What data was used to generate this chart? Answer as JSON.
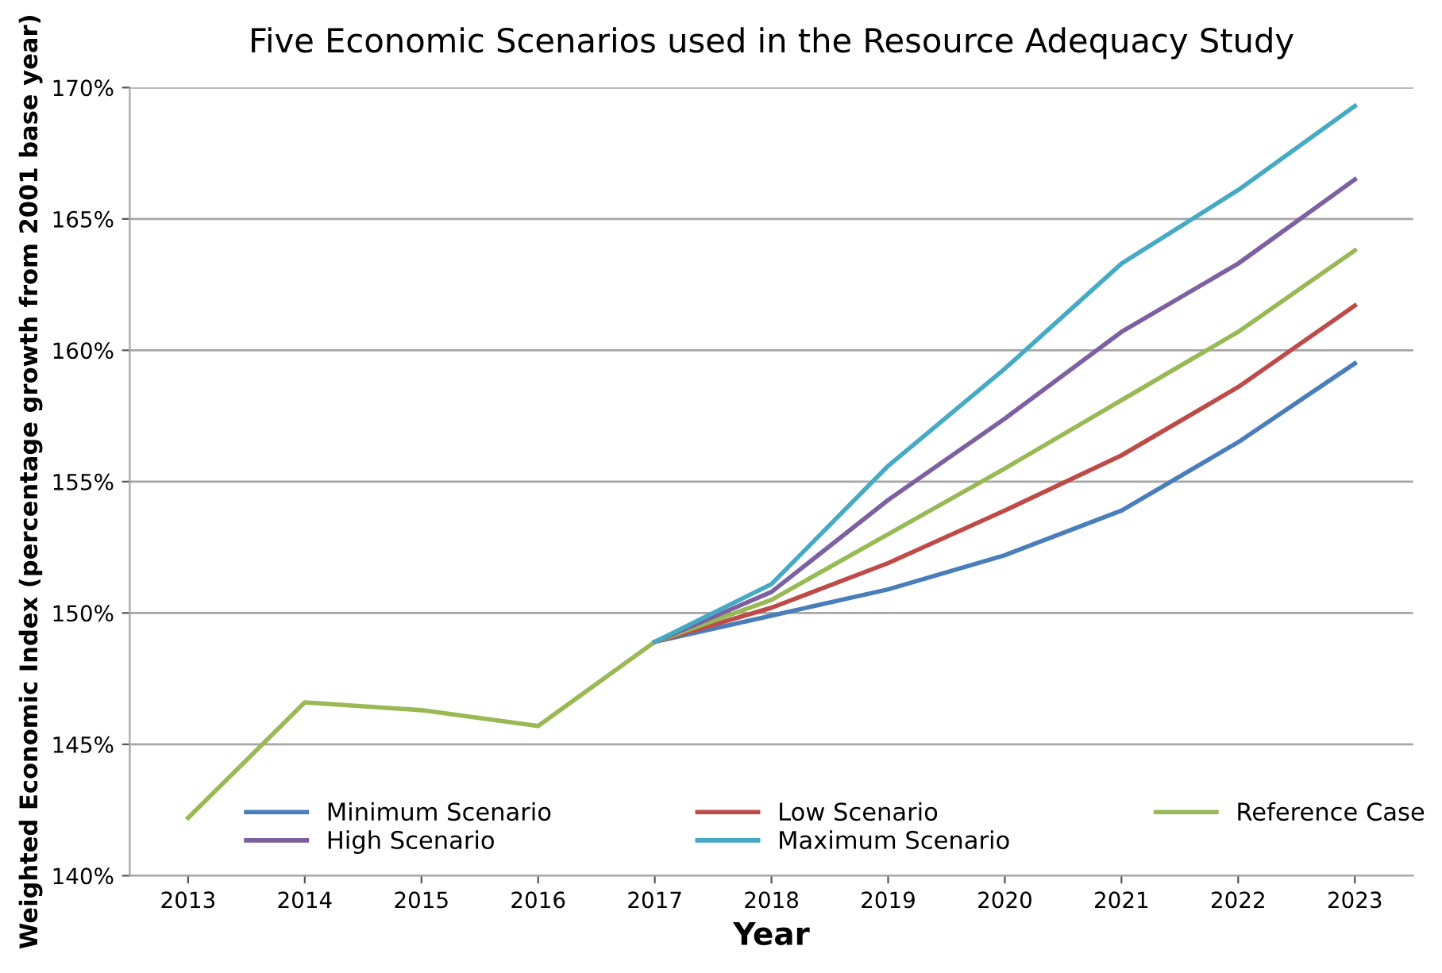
{
  "chart_data": {
    "type": "line",
    "title": "Five Economic Scenarios used in the Resource Adequacy Study",
    "xlabel": "Year",
    "ylabel": "Weighted Economic Index (percentage growth from 2001 base year)",
    "categories": [
      "2013",
      "2014",
      "2015",
      "2016",
      "2017",
      "2018",
      "2019",
      "2020",
      "2021",
      "2022",
      "2023"
    ],
    "series": [
      {
        "name": "Minimum Scenario",
        "color": "#4a7ebb",
        "values": [
          null,
          null,
          null,
          null,
          148.9,
          149.9,
          150.9,
          152.2,
          153.9,
          156.5,
          159.5
        ]
      },
      {
        "name": "Low Scenario",
        "color": "#be4b48",
        "values": [
          null,
          null,
          null,
          null,
          148.9,
          150.2,
          151.9,
          153.9,
          156.0,
          158.6,
          161.7
        ]
      },
      {
        "name": "Reference Case",
        "color": "#98b954",
        "values": [
          142.2,
          146.6,
          146.3,
          145.7,
          148.9,
          150.5,
          153.0,
          155.5,
          158.1,
          160.7,
          163.8
        ]
      },
      {
        "name": "High Scenario",
        "color": "#7d60a0",
        "values": [
          null,
          null,
          null,
          null,
          148.9,
          150.8,
          154.3,
          157.4,
          160.7,
          163.3,
          166.5
        ]
      },
      {
        "name": "Maximum Scenario",
        "color": "#46aac5",
        "values": [
          null,
          null,
          null,
          null,
          148.9,
          151.1,
          155.6,
          159.3,
          163.3,
          166.1,
          169.3
        ]
      }
    ],
    "ylim": [
      140,
      170
    ],
    "yticks": [
      {
        "value": 140,
        "label": "140%"
      },
      {
        "value": 145,
        "label": "145%"
      },
      {
        "value": 150,
        "label": "150%"
      },
      {
        "value": 155,
        "label": "155%"
      },
      {
        "value": 160,
        "label": "160%"
      },
      {
        "value": 165,
        "label": "165%"
      },
      {
        "value": 170,
        "label": "170%"
      }
    ],
    "grid": "y",
    "legend": "bottom",
    "marker": "none",
    "line_style": "solid"
  }
}
